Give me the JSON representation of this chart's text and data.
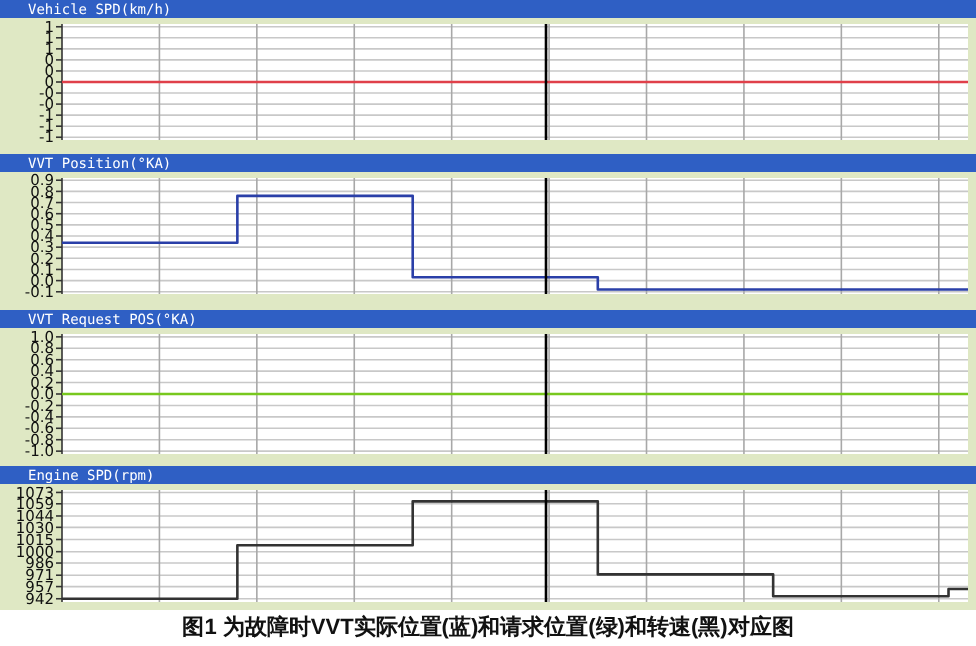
{
  "chart_data": [
    {
      "type": "line",
      "title": "Vehicle SPD(km/h)",
      "ylim": [
        -1.05,
        1.05
      ],
      "categories": [
        null,
        null,
        null,
        null,
        null,
        null,
        null,
        null,
        null,
        null,
        null,
        null,
        null,
        null,
        null,
        null,
        null,
        null,
        null,
        null,
        null,
        null,
        null,
        null,
        null,
        null,
        null,
        null,
        null,
        null,
        null,
        null,
        null,
        null,
        null,
        null,
        null,
        null,
        null,
        null,
        null,
        null,
        null,
        null,
        null,
        null,
        null,
        null,
        null,
        null,
        null,
        null,
        null,
        null,
        null,
        null,
        null,
        null,
        null,
        null,
        null,
        null,
        null,
        null,
        null,
        null,
        null,
        null,
        null,
        null,
        null,
        null,
        null,
        null,
        null,
        null,
        null,
        null,
        null,
        null,
        null,
        null,
        null,
        null,
        null,
        null,
        null,
        null,
        null,
        null,
        null,
        null,
        null,
        null
      ],
      "yticks": [
        {
          "value": 1,
          "label": "1"
        },
        {
          "value": 0.8,
          "label": "1"
        },
        {
          "value": 0.6,
          "label": "1"
        },
        {
          "value": 0.4,
          "label": "0"
        },
        {
          "value": 0.2,
          "label": "0"
        },
        {
          "value": 0,
          "label": "0"
        },
        {
          "value": -0.2,
          "label": "-0"
        },
        {
          "value": -0.4,
          "label": "-0"
        },
        {
          "value": -0.6,
          "label": "-1"
        },
        {
          "value": -0.8,
          "label": "-1"
        },
        {
          "value": -1,
          "label": "-1"
        }
      ],
      "series": [
        {
          "color": "#e0404a",
          "values": [
            0,
            0,
            0,
            0,
            0,
            0,
            0,
            0,
            0,
            0,
            0,
            0,
            0,
            0,
            0,
            0,
            0,
            0,
            0,
            0,
            0,
            0,
            0,
            0,
            0,
            0,
            0,
            0,
            0,
            0,
            0,
            0,
            0,
            0,
            0,
            0,
            0,
            0,
            0,
            0,
            0,
            0,
            0,
            0,
            0,
            0,
            0,
            0,
            0,
            0,
            0,
            0,
            0,
            0,
            0,
            0,
            0,
            0,
            0,
            0,
            0,
            0,
            0,
            0,
            0,
            0,
            0,
            0,
            0,
            0,
            0,
            0,
            0,
            0,
            0,
            0,
            0,
            0,
            0,
            0,
            0,
            0,
            0,
            0,
            0,
            0,
            0,
            0,
            0,
            0,
            0,
            0,
            0,
            0
          ]
        }
      ],
      "grid": true,
      "tick_labels": "y"
    },
    {
      "type": "step",
      "title": "VVT Position(°KA)",
      "ylim": [
        -0.12,
        0.92
      ],
      "categories": [
        null,
        null,
        null,
        null,
        null,
        null,
        null,
        null,
        null,
        null,
        null,
        null,
        null,
        null,
        null,
        null,
        null,
        null,
        null,
        null,
        null,
        null,
        null,
        null,
        null,
        null,
        null,
        null,
        null,
        null,
        null,
        null,
        null,
        null,
        null,
        null,
        null,
        null,
        null,
        null,
        null,
        null,
        null,
        null,
        null,
        null,
        null,
        null,
        null,
        null,
        null,
        null,
        null,
        null,
        null,
        null,
        null,
        null,
        null,
        null,
        null,
        null,
        null,
        null,
        null,
        null,
        null,
        null,
        null,
        null,
        null,
        null,
        null,
        null,
        null,
        null,
        null,
        null,
        null,
        null,
        null,
        null,
        null,
        null,
        null,
        null,
        null,
        null,
        null,
        null,
        null,
        null,
        null,
        null
      ],
      "yticks": [
        {
          "value": 0.9,
          "label": "0.9"
        },
        {
          "value": 0.8,
          "label": "0.8"
        },
        {
          "value": 0.7,
          "label": "0.7"
        },
        {
          "value": 0.6,
          "label": "0.6"
        },
        {
          "value": 0.5,
          "label": "0.5"
        },
        {
          "value": 0.4,
          "label": "0.4"
        },
        {
          "value": 0.3,
          "label": "0.3"
        },
        {
          "value": 0.2,
          "label": "0.2"
        },
        {
          "value": 0.1,
          "label": "0.1"
        },
        {
          "value": 0,
          "label": "0.0"
        },
        {
          "value": -0.1,
          "label": "-0.1"
        }
      ],
      "series": [
        {
          "color": "#2a3fa8",
          "values": [
            0.34,
            0.34,
            0.34,
            0.34,
            0.34,
            0.34,
            0.34,
            0.34,
            0.34,
            0.34,
            0.34,
            0.34,
            0.34,
            0.34,
            0.34,
            0.34,
            0.34,
            0.34,
            0.76,
            0.76,
            0.76,
            0.76,
            0.76,
            0.76,
            0.76,
            0.76,
            0.76,
            0.76,
            0.76,
            0.76,
            0.76,
            0.76,
            0.76,
            0.76,
            0.76,
            0.76,
            0.03,
            0.03,
            0.03,
            0.03,
            0.03,
            0.03,
            0.03,
            0.03,
            0.03,
            0.03,
            0.03,
            0.03,
            0.03,
            0.03,
            0.03,
            0.03,
            0.03,
            0.03,
            0.03,
            -0.08,
            -0.08,
            -0.08,
            -0.08,
            -0.08,
            -0.08,
            -0.08,
            -0.08,
            -0.08,
            -0.08,
            -0.08,
            -0.08,
            -0.08,
            -0.08,
            -0.08,
            -0.08,
            -0.08,
            -0.08,
            -0.08,
            -0.08,
            -0.08,
            -0.08,
            -0.08,
            -0.08,
            -0.08,
            -0.08,
            -0.08,
            -0.08,
            -0.08,
            -0.08,
            -0.08,
            -0.08,
            -0.08,
            -0.08,
            -0.08,
            -0.08,
            -0.08,
            -0.08,
            -0.08
          ]
        }
      ],
      "grid": true,
      "tick_labels": "y"
    },
    {
      "type": "line",
      "title": "VVT Request POS(°KA)",
      "ylim": [
        -1.05,
        1.05
      ],
      "categories": [
        null,
        null,
        null,
        null,
        null,
        null,
        null,
        null,
        null,
        null,
        null,
        null,
        null,
        null,
        null,
        null,
        null,
        null,
        null,
        null,
        null,
        null,
        null,
        null,
        null,
        null,
        null,
        null,
        null,
        null,
        null,
        null,
        null,
        null,
        null,
        null,
        null,
        null,
        null,
        null,
        null,
        null,
        null,
        null,
        null,
        null,
        null,
        null,
        null,
        null,
        null,
        null,
        null,
        null,
        null,
        null,
        null,
        null,
        null,
        null,
        null,
        null,
        null,
        null,
        null,
        null,
        null,
        null,
        null,
        null,
        null,
        null,
        null,
        null,
        null,
        null,
        null,
        null,
        null,
        null,
        null,
        null,
        null,
        null,
        null,
        null,
        null,
        null,
        null,
        null,
        null,
        null,
        null,
        null
      ],
      "yticks": [
        {
          "value": 1,
          "label": "1.0"
        },
        {
          "value": 0.8,
          "label": "0.8"
        },
        {
          "value": 0.6,
          "label": "0.6"
        },
        {
          "value": 0.4,
          "label": "0.4"
        },
        {
          "value": 0.2,
          "label": "0.2"
        },
        {
          "value": 0,
          "label": "0.0"
        },
        {
          "value": -0.2,
          "label": "-0.2"
        },
        {
          "value": -0.4,
          "label": "-0.4"
        },
        {
          "value": -0.6,
          "label": "-0.6"
        },
        {
          "value": -0.8,
          "label": "-0.8"
        },
        {
          "value": -1,
          "label": "-1.0"
        }
      ],
      "series": [
        {
          "color": "#78c81e",
          "values": [
            0,
            0,
            0,
            0,
            0,
            0,
            0,
            0,
            0,
            0,
            0,
            0,
            0,
            0,
            0,
            0,
            0,
            0,
            0,
            0,
            0,
            0,
            0,
            0,
            0,
            0,
            0,
            0,
            0,
            0,
            0,
            0,
            0,
            0,
            0,
            0,
            0,
            0,
            0,
            0,
            0,
            0,
            0,
            0,
            0,
            0,
            0,
            0,
            0,
            0,
            0,
            0,
            0,
            0,
            0,
            0,
            0,
            0,
            0,
            0,
            0,
            0,
            0,
            0,
            0,
            0,
            0,
            0,
            0,
            0,
            0,
            0,
            0,
            0,
            0,
            0,
            0,
            0,
            0,
            0,
            0,
            0,
            0,
            0,
            0,
            0,
            0,
            0,
            0,
            0,
            0,
            0,
            0,
            0
          ]
        }
      ],
      "grid": true,
      "tick_labels": "y"
    },
    {
      "type": "step",
      "title": "Engine SPD(rpm)",
      "ylim": [
        938,
        1076
      ],
      "categories": [
        null,
        null,
        null,
        null,
        null,
        null,
        null,
        null,
        null,
        null,
        null,
        null,
        null,
        null,
        null,
        null,
        null,
        null,
        null,
        null,
        null,
        null,
        null,
        null,
        null,
        null,
        null,
        null,
        null,
        null,
        null,
        null,
        null,
        null,
        null,
        null,
        null,
        null,
        null,
        null,
        null,
        null,
        null,
        null,
        null,
        null,
        null,
        null,
        null,
        null,
        null,
        null,
        null,
        null,
        null,
        null,
        null,
        null,
        null,
        null,
        null,
        null,
        null,
        null,
        null,
        null,
        null,
        null,
        null,
        null,
        null,
        null,
        null,
        null,
        null,
        null,
        null,
        null,
        null,
        null,
        null,
        null,
        null,
        null,
        null,
        null,
        null,
        null,
        null,
        null,
        null,
        null,
        null,
        null
      ],
      "yticks": [
        1073,
        1059,
        1044,
        1030,
        1015,
        1000,
        986,
        971,
        957,
        942
      ],
      "series": [
        {
          "color": "#333333",
          "values": [
            942,
            942,
            942,
            942,
            942,
            942,
            942,
            942,
            942,
            942,
            942,
            942,
            942,
            942,
            942,
            942,
            942,
            942,
            1008,
            1008,
            1008,
            1008,
            1008,
            1008,
            1008,
            1008,
            1008,
            1008,
            1008,
            1008,
            1008,
            1008,
            1008,
            1008,
            1008,
            1008,
            1062,
            1062,
            1062,
            1062,
            1062,
            1062,
            1062,
            1062,
            1062,
            1062,
            1062,
            1062,
            1062,
            1062,
            1062,
            1062,
            1062,
            1062,
            1062,
            972,
            972,
            972,
            972,
            972,
            972,
            972,
            972,
            972,
            972,
            972,
            972,
            972,
            972,
            972,
            972,
            972,
            972,
            945,
            945,
            945,
            945,
            945,
            945,
            945,
            945,
            945,
            945,
            945,
            945,
            945,
            945,
            945,
            945,
            945,
            945,
            954,
            954,
            954
          ]
        }
      ],
      "grid": true,
      "tick_labels": "y",
      "annotations": [
        "图1 为故障时VVT实际位置(蓝)和请求位置(绿)和转速(黑)对应图"
      ]
    }
  ]
}
